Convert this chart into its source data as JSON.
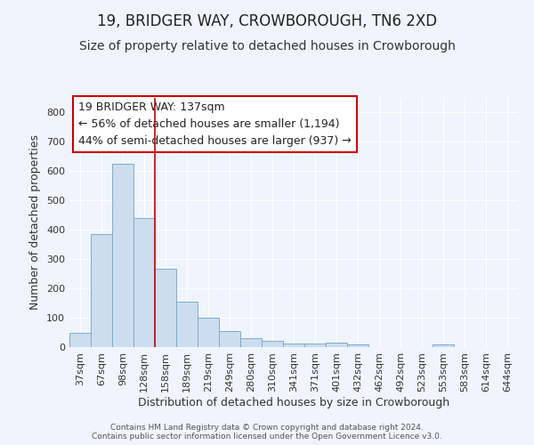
{
  "title": "19, BRIDGER WAY, CROWBOROUGH, TN6 2XD",
  "subtitle": "Size of property relative to detached houses in Crowborough",
  "xlabel": "Distribution of detached houses by size in Crowborough",
  "ylabel": "Number of detached properties",
  "categories": [
    "37sqm",
    "67sqm",
    "98sqm",
    "128sqm",
    "158sqm",
    "189sqm",
    "219sqm",
    "249sqm",
    "280sqm",
    "310sqm",
    "341sqm",
    "371sqm",
    "401sqm",
    "432sqm",
    "462sqm",
    "492sqm",
    "523sqm",
    "553sqm",
    "583sqm",
    "614sqm",
    "644sqm"
  ],
  "values": [
    50,
    385,
    625,
    440,
    268,
    155,
    100,
    55,
    30,
    20,
    13,
    12,
    15,
    8,
    0,
    0,
    0,
    8,
    0,
    0,
    0
  ],
  "bar_color": "#ccdded",
  "bar_edge_color": "#7aadcc",
  "vline_x": 3.5,
  "vline_color": "#cc0000",
  "annotation_text": "19 BRIDGER WAY: 137sqm\n← 56% of detached houses are smaller (1,194)\n44% of semi-detached houses are larger (937) →",
  "annotation_box_facecolor": "#ffffff",
  "annotation_box_edgecolor": "#cc0000",
  "ylim": [
    0,
    850
  ],
  "yticks": [
    0,
    100,
    200,
    300,
    400,
    500,
    600,
    700,
    800
  ],
  "fig_facecolor": "#f0f4fc",
  "ax_facecolor": "#f0f4fc",
  "grid_color": "#ffffff",
  "footer_text": "Contains HM Land Registry data © Crown copyright and database right 2024.\nContains public sector information licensed under the Open Government Licence v3.0.",
  "title_fontsize": 12,
  "subtitle_fontsize": 10,
  "axis_label_fontsize": 9,
  "tick_fontsize": 8,
  "annotation_fontsize": 9,
  "footer_fontsize": 6.5
}
